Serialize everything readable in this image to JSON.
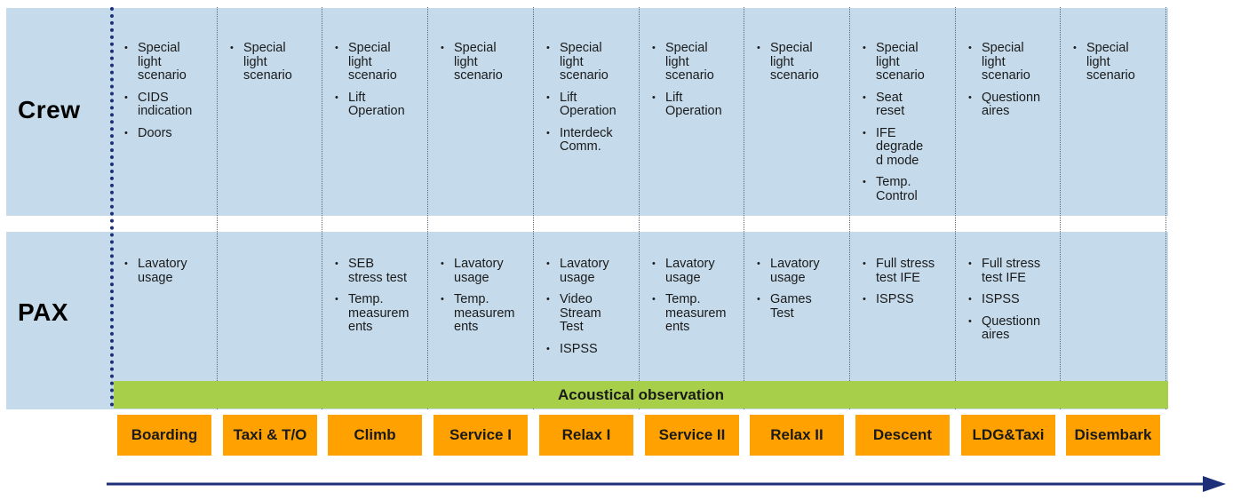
{
  "rows": {
    "crew_label": "Crew",
    "pax_label": "PAX"
  },
  "acoustic_label": "Acoustical observation",
  "phases": [
    {
      "name": "Boarding",
      "crew": [
        "Special\nlight\nscenario",
        "CIDS\nindication",
        "Doors"
      ],
      "pax": [
        "Lavatory\nusage"
      ]
    },
    {
      "name": "Taxi & T/O",
      "crew": [
        "Special\nlight\nscenario"
      ],
      "pax": []
    },
    {
      "name": "Climb",
      "crew": [
        "Special\nlight\nscenario",
        "Lift\nOperation"
      ],
      "pax": [
        "SEB\nstress test",
        "Temp.\nmeasurem\nents"
      ]
    },
    {
      "name": "Service I",
      "crew": [
        "Special\nlight\nscenario"
      ],
      "pax": [
        "Lavatory\nusage",
        "Temp.\nmeasurem\nents"
      ]
    },
    {
      "name": "Relax I",
      "crew": [
        "Special\nlight\nscenario",
        "Lift\nOperation",
        "Interdeck\nComm."
      ],
      "pax": [
        "Lavatory\nusage",
        "Video\nStream\nTest",
        "ISPSS"
      ]
    },
    {
      "name": "Service II",
      "crew": [
        "Special\nlight\nscenario",
        "Lift\nOperation"
      ],
      "pax": [
        "Lavatory\nusage",
        "Temp.\nmeasurem\nents"
      ]
    },
    {
      "name": "Relax II",
      "crew": [
        "Special\nlight\nscenario"
      ],
      "pax": [
        "Lavatory\nusage",
        "Games\nTest"
      ]
    },
    {
      "name": "Descent",
      "crew": [
        "Special\nlight\nscenario",
        "Seat\nreset",
        "IFE\ndegrade\nd mode",
        "Temp.\nControl"
      ],
      "pax": [
        "Full stress\ntest IFE",
        "ISPSS"
      ]
    },
    {
      "name": "LDG&Taxi",
      "crew": [
        "Special\nlight\nscenario",
        "Questionn\naires"
      ],
      "pax": [
        "Full stress\ntest IFE",
        "ISPSS",
        "Questionn\naires"
      ]
    },
    {
      "name": "Disembark",
      "crew": [
        "Special\nlight\nscenario"
      ],
      "pax": []
    }
  ]
}
